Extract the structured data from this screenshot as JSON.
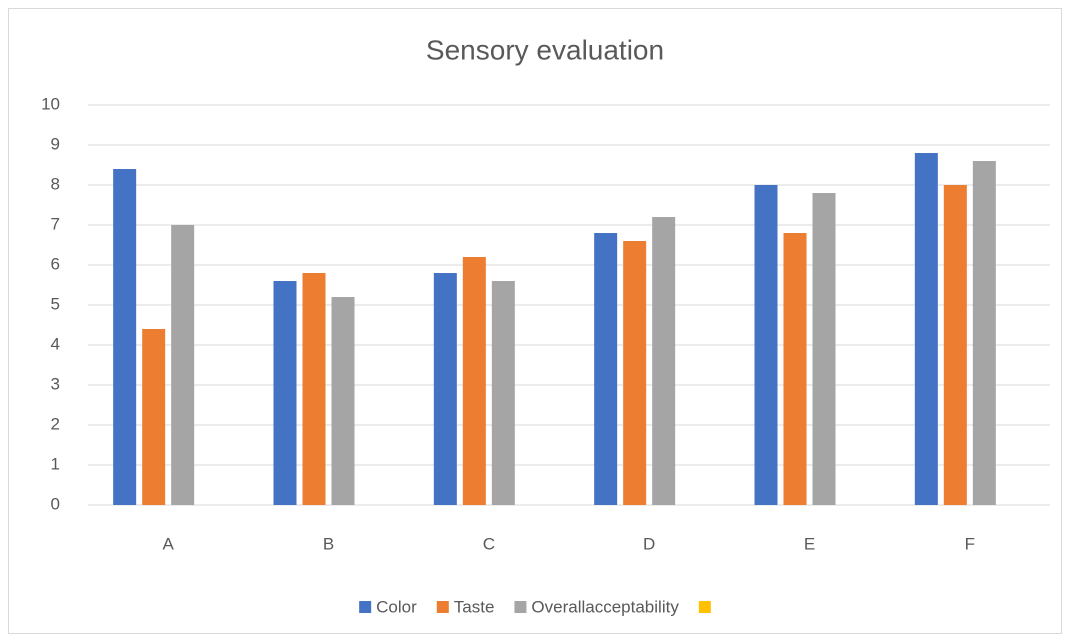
{
  "chart_data": {
    "type": "bar",
    "title": "Sensory evaluation",
    "categories": [
      "A",
      "B",
      "C",
      "D",
      "E",
      "F"
    ],
    "series": [
      {
        "name": "Color",
        "color": "#4472c4",
        "values": [
          8.4,
          5.6,
          5.8,
          6.8,
          8.0,
          8.8
        ]
      },
      {
        "name": "Taste",
        "color": "#ed7d31",
        "values": [
          4.4,
          5.8,
          6.2,
          6.6,
          6.8,
          8.0
        ]
      },
      {
        "name": "Overallacceptability",
        "color": "#a5a5a5",
        "values": [
          7.0,
          5.2,
          5.6,
          7.2,
          7.8,
          8.6
        ]
      },
      {
        "color": "#ffc000",
        "values": [
          null,
          null,
          null,
          null,
          null,
          null
        ]
      }
    ],
    "ylim": [
      0,
      10
    ],
    "yticks": [
      0,
      1,
      2,
      3,
      4,
      5,
      6,
      7,
      8,
      9,
      10
    ],
    "grid": true,
    "legend": "bottom"
  }
}
